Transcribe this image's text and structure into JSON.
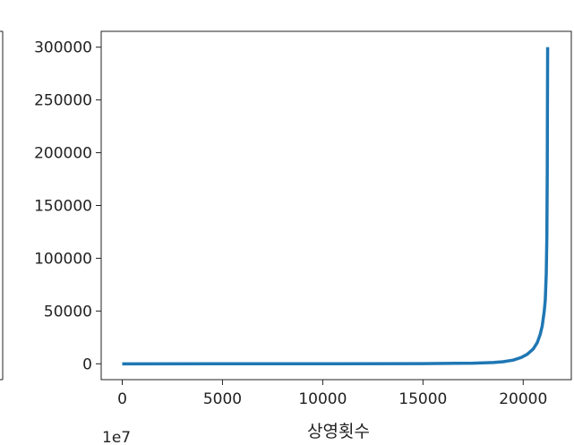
{
  "chart_data": {
    "type": "line",
    "title": "",
    "xlabel": "상영횟수",
    "ylabel": "",
    "xlim": [
      -1050,
      22400
    ],
    "ylim": [
      -15000,
      315000
    ],
    "xticks": [
      0,
      5000,
      10000,
      15000,
      20000
    ],
    "xtick_labels": [
      "0",
      "5000",
      "10000",
      "15000",
      "20000"
    ],
    "yticks": [
      0,
      50000,
      100000,
      150000,
      200000,
      250000,
      300000
    ],
    "ytick_labels": [
      "0",
      "50000",
      "100000",
      "150000",
      "200000",
      "250000",
      "300000"
    ],
    "grid": false,
    "legend": "none",
    "series": [
      {
        "color": "#1f77b4",
        "x": [
          0,
          5000,
          10000,
          15000,
          17500,
          18500,
          19000,
          19500,
          19900,
          20200,
          20500,
          20700,
          20850,
          20950,
          21050,
          21100,
          21150,
          21180,
          21200,
          21210,
          21220
        ],
        "y": [
          0,
          20,
          60,
          200,
          600,
          1200,
          2000,
          3500,
          6000,
          9000,
          14000,
          20000,
          28000,
          36000,
          50000,
          60000,
          85000,
          120000,
          180000,
          250000,
          300000
        ]
      }
    ]
  },
  "side_panel": {
    "offset_text": "1e7"
  }
}
